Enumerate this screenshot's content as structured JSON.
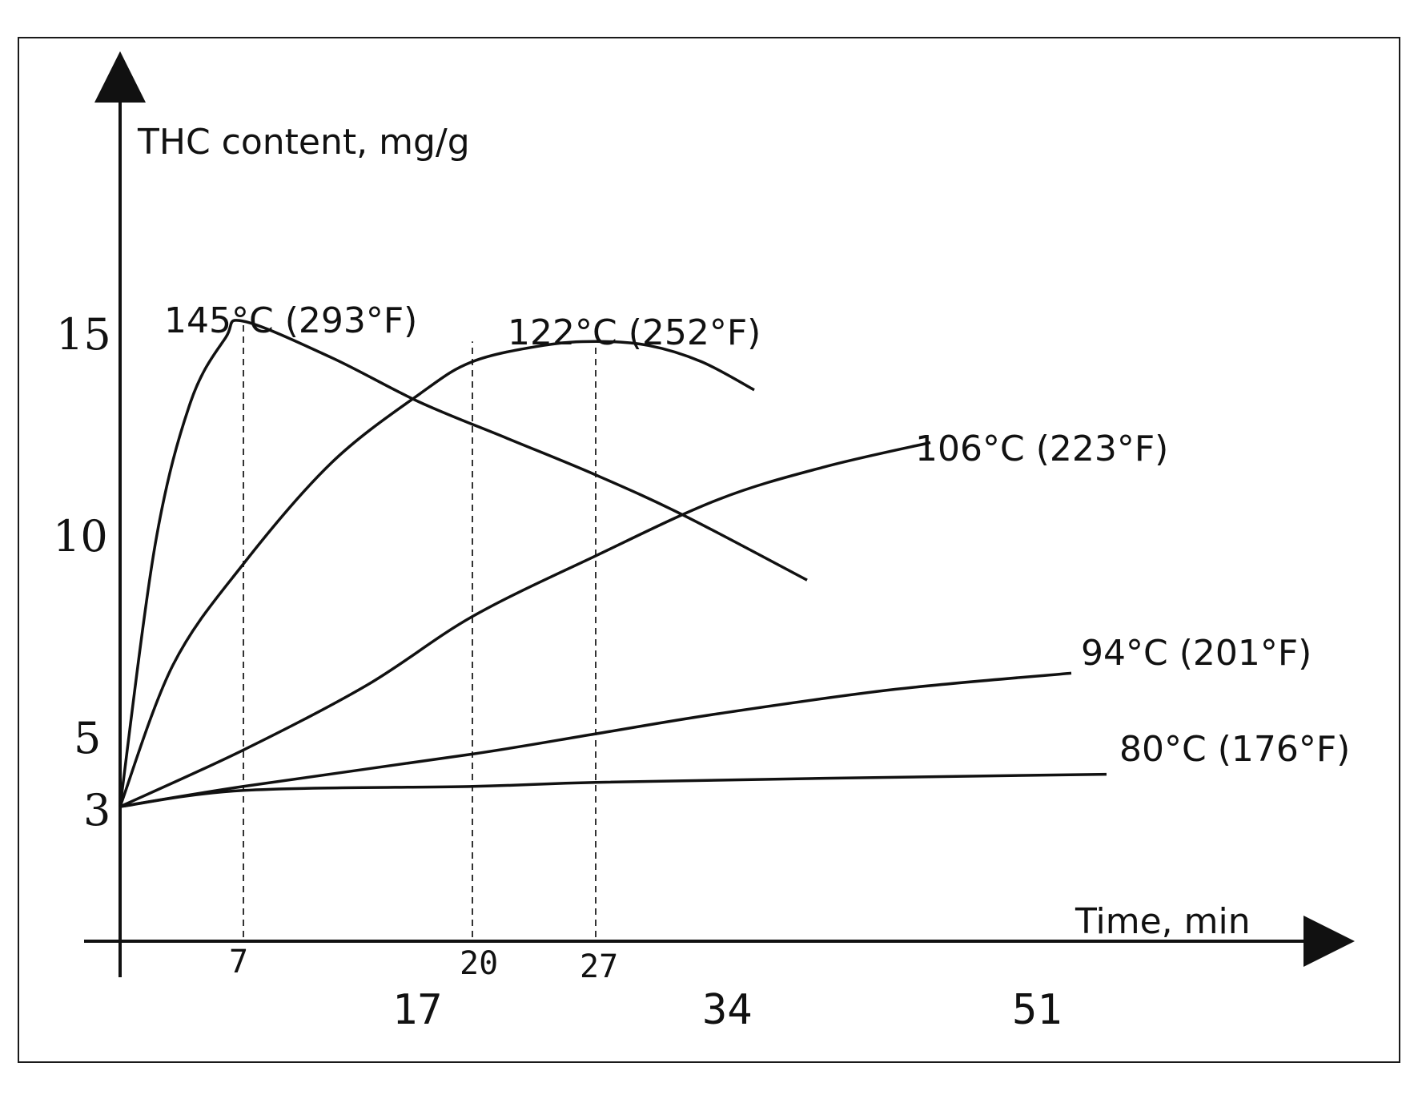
{
  "chart_data": {
    "type": "line",
    "ylabel": "THC content, mg/g",
    "xlabel": "Time, min",
    "y_ticks": [
      "3",
      "5",
      "10",
      "15"
    ],
    "x_ticks_small": [
      "7",
      "20",
      "27"
    ],
    "x_ticks_large": [
      "17",
      "34",
      "51"
    ],
    "series": [
      {
        "name": "145°C (293°F)",
        "x": [
          0,
          2,
          4,
          6,
          7,
          12,
          17,
          22,
          27,
          32,
          39
        ],
        "y": [
          3,
          9.5,
          13,
          14.6,
          15,
          14.1,
          13,
          12.1,
          11.2,
          10.2,
          8.6
        ]
      },
      {
        "name": "122°C (252°F)",
        "x": [
          0,
          3,
          7,
          12,
          17,
          20,
          24,
          27,
          30,
          33,
          36
        ],
        "y": [
          3,
          6.5,
          9,
          11.5,
          13.2,
          14,
          14.4,
          14.5,
          14.4,
          14,
          13.3
        ]
      },
      {
        "name": "106°C (223°F)",
        "x": [
          0,
          7,
          14,
          20,
          27,
          34,
          40,
          46
        ],
        "y": [
          3,
          4.4,
          6,
          7.7,
          9.2,
          10.6,
          11.4,
          12
        ]
      },
      {
        "name": "94°C (201°F)",
        "x": [
          0,
          7,
          20,
          27,
          34,
          44,
          54
        ],
        "y": [
          3,
          3.5,
          4.3,
          4.8,
          5.3,
          5.9,
          6.3
        ]
      },
      {
        "name": "80°C (176°F)",
        "x": [
          0,
          7,
          20,
          27,
          40,
          56
        ],
        "y": [
          3,
          3.4,
          3.5,
          3.6,
          3.7,
          3.8
        ]
      }
    ],
    "guide_lines_x": [
      7,
      20,
      27
    ],
    "xlim": [
      0,
      56
    ],
    "ylim": [
      0,
      15
    ]
  }
}
